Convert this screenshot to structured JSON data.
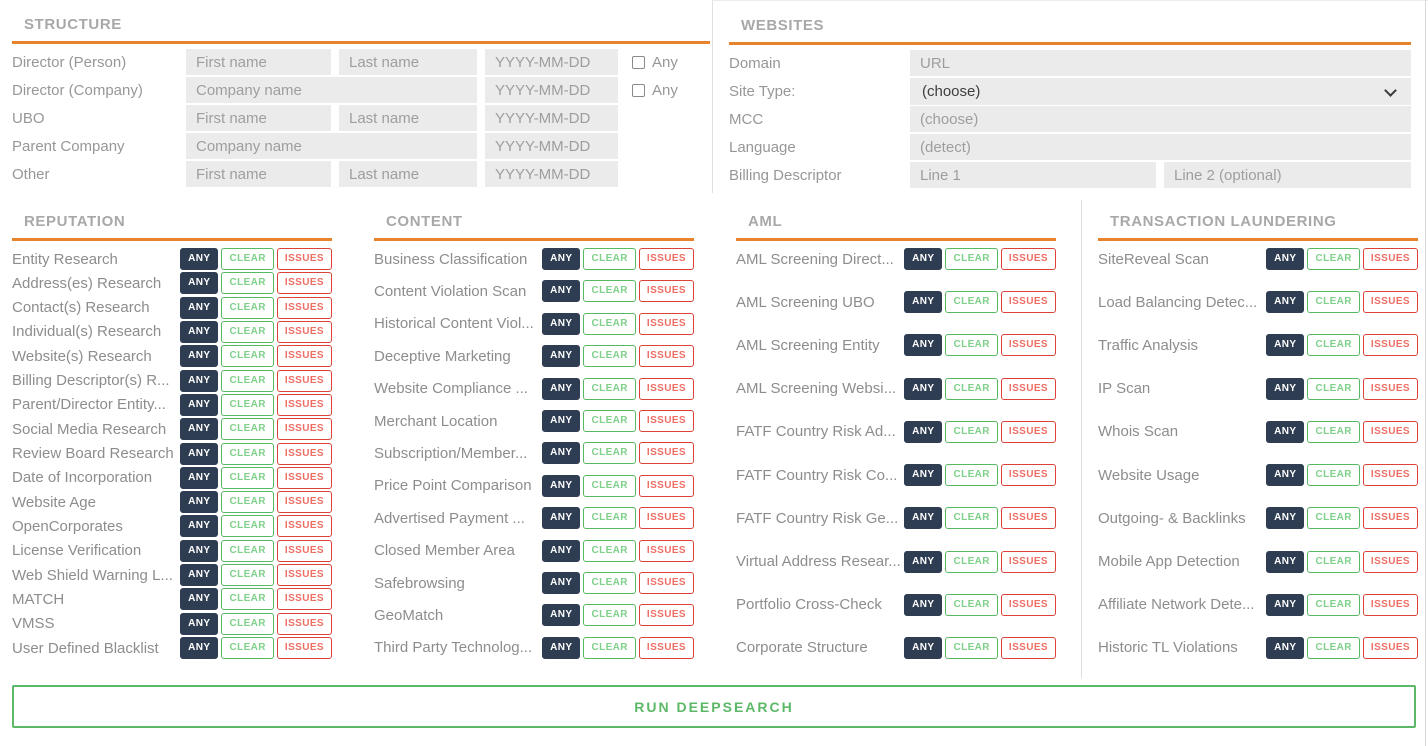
{
  "colors": {
    "accent_orange": "#e8832b",
    "navy": "#2f3d52",
    "green_border": "#57b95f",
    "green_text": "#7fd08a",
    "red_border": "#dc4238",
    "red_text": "#ee6e64",
    "run_green": "#5cb867",
    "header_gray": "#a8a8a8",
    "label_gray": "#8d8d8d",
    "input_bg": "#ebebeb"
  },
  "structure": {
    "title": "STRUCTURE",
    "any_label": "Any",
    "rows": [
      {
        "label": "Director (Person)",
        "first": "First name",
        "last": "Last name",
        "date": "YYYY-MM-DD",
        "has_any": true
      },
      {
        "label": "Director (Company)",
        "company": "Company name",
        "date": "YYYY-MM-DD",
        "has_any": true
      },
      {
        "label": "UBO",
        "first": "First name",
        "last": "Last name",
        "date": "YYYY-MM-DD",
        "has_any": false
      },
      {
        "label": "Parent Company",
        "company": "Company name",
        "date": "YYYY-MM-DD",
        "has_any": false
      },
      {
        "label": "Other",
        "first": "First name",
        "last": "Last name",
        "date": "YYYY-MM-DD",
        "has_any": false
      }
    ]
  },
  "websites": {
    "title": "WEBSITES",
    "rows": {
      "domain": {
        "label": "Domain",
        "placeholder": "URL"
      },
      "site_type": {
        "label": "Site Type:",
        "value": "(choose)"
      },
      "mcc": {
        "label": "MCC",
        "placeholder": "(choose)"
      },
      "language": {
        "label": "Language",
        "placeholder": "(detect)"
      },
      "billing": {
        "label": "Billing Descriptor",
        "placeholder1": "Line 1",
        "placeholder2": "Line 2 (optional)"
      }
    }
  },
  "check_sections": [
    {
      "title": "REPUTATION",
      "items": [
        "Entity Research",
        "Address(es) Research",
        "Contact(s) Research",
        "Individual(s) Research",
        "Website(s) Research",
        "Billing Descriptor(s) R...",
        "Parent/Director Entity...",
        "Social Media Research",
        "Review Board Research",
        "Date of Incorporation",
        "Website Age",
        "OpenCorporates",
        "License Verification",
        "Web Shield Warning L...",
        "MATCH",
        "VMSS",
        "User Defined Blacklist"
      ]
    },
    {
      "title": "CONTENT",
      "items": [
        "Business Classification",
        "Content Violation Scan",
        "Historical Content Viol...",
        "Deceptive Marketing",
        "Website Compliance ...",
        "Merchant Location",
        "Subscription/Member...",
        "Price Point Comparison",
        "Advertised Payment ...",
        "Closed Member Area",
        "Safebrowsing",
        "GeoMatch",
        "Third Party Technolog..."
      ]
    },
    {
      "title": "AML",
      "items": [
        "AML Screening Direct...",
        "AML Screening UBO",
        "AML Screening Entity",
        "AML Screening Websi...",
        "FATF Country Risk Ad...",
        "FATF Country Risk Co...",
        "FATF Country Risk Ge...",
        "Virtual Address Resear...",
        "Portfolio Cross-Check",
        "Corporate Structure"
      ]
    },
    {
      "title": "TRANSACTION LAUNDERING",
      "items": [
        "SiteReveal Scan",
        "Load Balancing Detec...",
        "Traffic Analysis",
        "IP Scan",
        "Whois Scan",
        "Website Usage",
        "Outgoing- & Backlinks",
        "Mobile App Detection",
        "Affiliate Network Dete...",
        "Historic TL Violations"
      ]
    }
  ],
  "toggle": {
    "any": "ANY",
    "clear": "CLEAR",
    "issues": "ISSUES",
    "selected": "ANY"
  },
  "run_button": {
    "label": "RUN DEEPSEARCH"
  },
  "icons": {
    "site_type": "chevron-down-icon"
  }
}
